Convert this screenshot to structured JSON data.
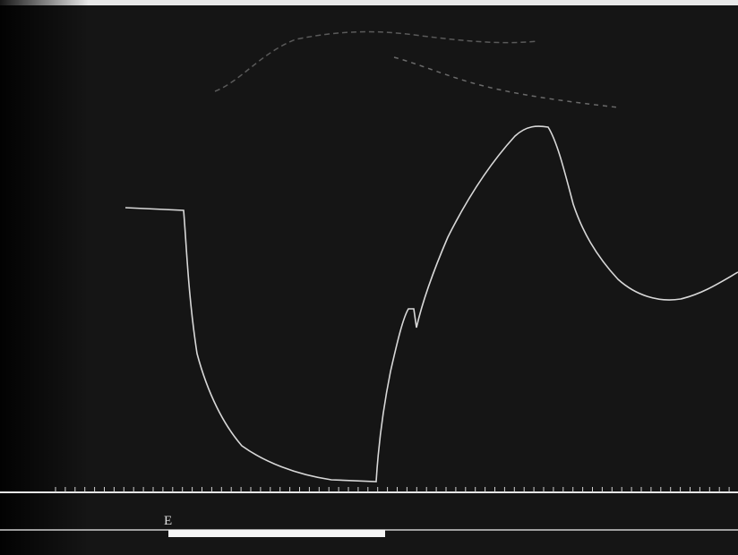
{
  "marker": {
    "label": "E"
  }
}
